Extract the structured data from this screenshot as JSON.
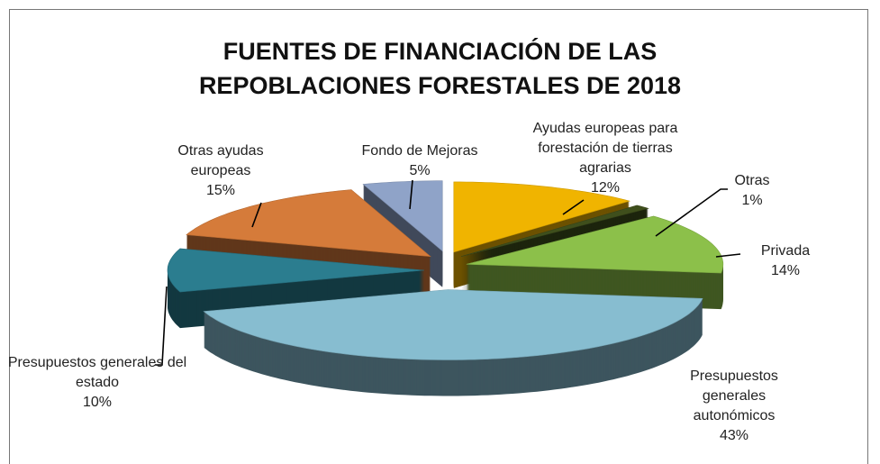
{
  "chart_data": {
    "type": "pie",
    "title": "FUENTES DE FINANCIACIÓN DE LAS REPOBLACIONES FORESTALES DE 2018",
    "categories": [
      "Ayudas europeas para forestación de tierras agrarias",
      "Otras",
      "Privada",
      "Presupuestos generales autonómicos",
      "Presupuestos generales del estado",
      "Otras ayudas europeas",
      "Fondo de Mejoras"
    ],
    "values": [
      12,
      1,
      14,
      43,
      10,
      15,
      5
    ],
    "value_labels": [
      "12%",
      "1%",
      "14%",
      "43%",
      "10%",
      "15%",
      "5%"
    ],
    "colors": [
      "#f0b400",
      "#3f4f1c",
      "#8cc04a",
      "#87bdd0",
      "#2b7d8f",
      "#d57b3a",
      "#8fa3c8"
    ]
  }
}
